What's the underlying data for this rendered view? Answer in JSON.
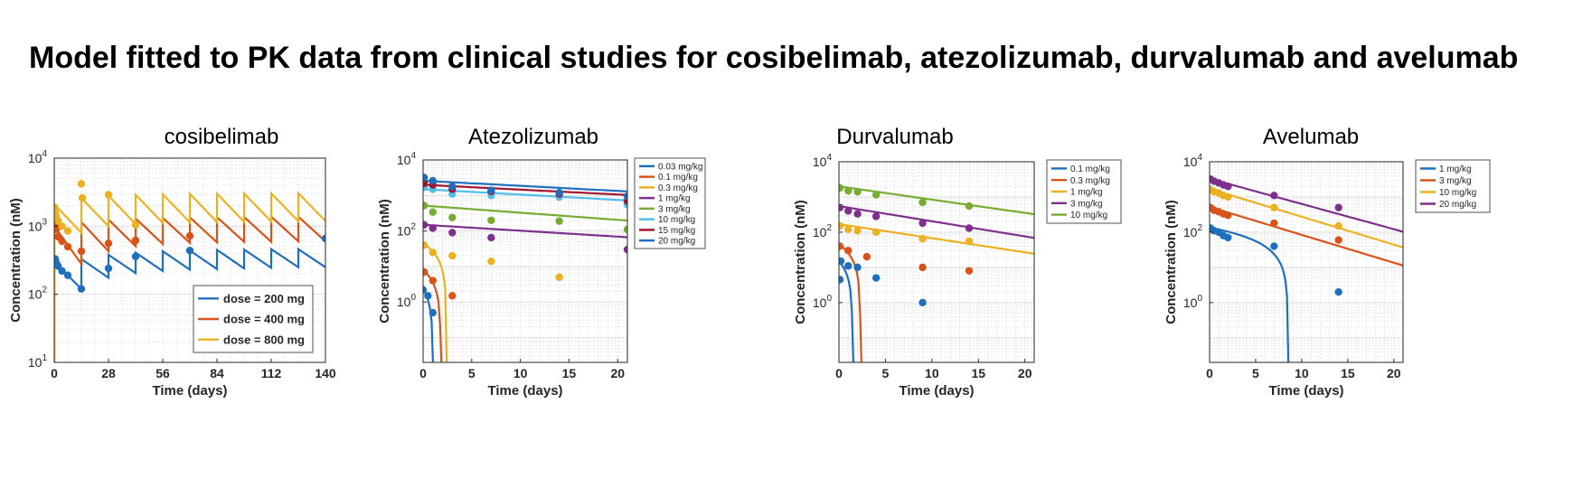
{
  "slide": {
    "title": "Model fitted to PK data from clinical studies for cosibelimab, atezolizumab, durvalumab and avelumab"
  },
  "colors": {
    "blue": "#1f6fbf",
    "orange": "#d95319",
    "yellow": "#edb120",
    "purple": "#7e2f8e",
    "green": "#77ac30",
    "lightblue": "#4dbeee",
    "darkred": "#a2142f",
    "grid": "#d9d9d9"
  },
  "chart_data": [
    {
      "type": "line",
      "title": "cosibelimab",
      "xlabel": "Time (days)",
      "ylabel": "Concentration (nM)",
      "xlim": [
        0,
        140
      ],
      "ylim": [
        10,
        10000
      ],
      "yscale": "log",
      "xticks": [
        0,
        28,
        56,
        84,
        112,
        140
      ],
      "xticklabels": [
        "0",
        "28",
        "56",
        "84",
        "112",
        "140"
      ],
      "yticks": [
        10,
        100,
        1000,
        10000
      ],
      "yticklabels": [
        "10",
        "10",
        "10",
        "10"
      ],
      "yticksup": [
        "1",
        "2",
        "3",
        "4"
      ],
      "grid": true,
      "legend": "bottom-right",
      "dosing": {
        "interval": 14,
        "n": 10
      },
      "series": [
        {
          "name": "dose = 200 mg",
          "color": "#1f6fbf",
          "peak": [
            300,
            330,
            380,
            410,
            430,
            440,
            450,
            455,
            460,
            460
          ],
          "trough": [
            120,
            175,
            205,
            220,
            230,
            235,
            240,
            245,
            250,
            250
          ],
          "points": [
            [
              0.5,
              330
            ],
            [
              1,
              290
            ],
            [
              2,
              260
            ],
            [
              4,
              220
            ],
            [
              7,
              190
            ],
            [
              14,
              120
            ],
            [
              28,
              240
            ],
            [
              42,
              360
            ],
            [
              70,
              440
            ],
            [
              140,
              660
            ]
          ]
        },
        {
          "name": "dose = 400 mg",
          "color": "#d95319",
          "peak": [
            1000,
            1150,
            1250,
            1300,
            1330,
            1350,
            1360,
            1370,
            1380,
            1380
          ],
          "trough": [
            280,
            430,
            510,
            550,
            570,
            580,
            590,
            590,
            600,
            600
          ],
          "points": [
            [
              0.5,
              1050
            ],
            [
              1,
              900
            ],
            [
              2,
              700
            ],
            [
              4,
              600
            ],
            [
              7,
              500
            ],
            [
              14,
              430
            ],
            [
              28,
              560
            ],
            [
              42,
              620
            ],
            [
              70,
              720
            ]
          ]
        },
        {
          "name": "dose = 800 mg",
          "color": "#edb120",
          "peak": [
            2100,
            2600,
            2800,
            2900,
            2950,
            3000,
            3020,
            3030,
            3040,
            3050
          ],
          "trough": [
            800,
            1000,
            1080,
            1120,
            1140,
            1150,
            1160,
            1170,
            1180,
            1190
          ],
          "points": [
            [
              0.2,
              1900
            ],
            [
              0.5,
              1600
            ],
            [
              1,
              1400
            ],
            [
              2,
              1200
            ],
            [
              4,
              1000
            ],
            [
              7,
              850
            ],
            [
              14,
              4200
            ],
            [
              14.5,
              2600
            ],
            [
              28,
              2900
            ],
            [
              42,
              1050
            ]
          ]
        }
      ]
    },
    {
      "type": "line",
      "title": "Atezolizumab",
      "xlabel": "Time (days)",
      "ylabel": "Concentration (nM)",
      "xlim": [
        0,
        21
      ],
      "ylim": [
        0.02,
        10000
      ],
      "yscale": "log",
      "xticks": [
        0,
        5,
        10,
        15,
        20
      ],
      "xticklabels": [
        "0",
        "5",
        "10",
        "15",
        "20"
      ],
      "yticks": [
        1,
        100,
        10000
      ],
      "yticklabels": [
        "10",
        "10",
        "10"
      ],
      "yticksup": [
        "0",
        "2",
        "4"
      ],
      "grid": true,
      "legend": "top-right-outside",
      "series": [
        {
          "name": "0.03 mg/kg",
          "color": "#1f6fbf",
          "c0": 2.3,
          "linear_elim": 1.0,
          "points": [
            [
              0,
              2.2
            ],
            [
              0.5,
              1.5
            ],
            [
              1,
              0.5
            ]
          ]
        },
        {
          "name": "0.1 mg/kg",
          "color": "#d95319",
          "c0": 8,
          "linear_elim": 1.8,
          "points": [
            [
              0.1,
              7
            ],
            [
              1,
              4
            ],
            [
              3,
              1.5
            ]
          ]
        },
        {
          "name": "0.3 mg/kg",
          "color": "#edb120",
          "c0": 45,
          "linear_elim": 2.4,
          "points": [
            [
              0.1,
              40
            ],
            [
              1,
              25
            ],
            [
              3,
              20
            ],
            [
              7,
              14
            ],
            [
              14,
              5
            ]
          ]
        },
        {
          "name": "1 mg/kg",
          "color": "#7e2f8e",
          "c0": 150,
          "half_life": 18,
          "points": [
            [
              0.1,
              150
            ],
            [
              1,
              120
            ],
            [
              3,
              90
            ],
            [
              7,
              65
            ],
            [
              21,
              30
            ]
          ]
        },
        {
          "name": "3 mg/kg",
          "color": "#77ac30",
          "c0": 520,
          "half_life": 15,
          "points": [
            [
              0.1,
              520
            ],
            [
              1,
              340
            ],
            [
              3,
              240
            ],
            [
              7,
              200
            ],
            [
              14,
              190
            ],
            [
              21,
              110
            ]
          ]
        },
        {
          "name": "10 mg/kg",
          "color": "#4dbeee",
          "c0": 1500,
          "half_life": 20,
          "points": [
            [
              0.1,
              1700
            ],
            [
              1,
              1500
            ],
            [
              3,
              1100
            ],
            [
              7,
              1000
            ],
            [
              14,
              900
            ],
            [
              21,
              550
            ]
          ]
        },
        {
          "name": "15 mg/kg",
          "color": "#a2142f",
          "c0": 2000,
          "half_life": 22,
          "points": [
            [
              0.1,
              2200
            ],
            [
              1,
              2000
            ],
            [
              3,
              1500
            ],
            [
              7,
              1300
            ],
            [
              14,
              1100
            ],
            [
              21,
              700
            ]
          ]
        },
        {
          "name": "20 mg/kg",
          "color": "#1f6fbf",
          "c0": 2600,
          "half_life": 21,
          "points": [
            [
              0.1,
              3200
            ],
            [
              1,
              2600
            ],
            [
              3,
              1800
            ],
            [
              7,
              1400
            ],
            [
              14,
              1200
            ],
            [
              21,
              950
            ]
          ]
        }
      ]
    },
    {
      "type": "line",
      "title": "Durvalumab",
      "xlabel": "Time (days)",
      "ylabel": "Concentration (nM)",
      "xlim": [
        0,
        21
      ],
      "ylim": [
        0.02,
        10000
      ],
      "yscale": "log",
      "xticks": [
        0,
        5,
        10,
        15,
        20
      ],
      "xticklabels": [
        "0",
        "5",
        "10",
        "15",
        "20"
      ],
      "yticks": [
        1,
        100,
        10000
      ],
      "yticklabels": [
        "10",
        "10",
        "10"
      ],
      "yticksup": [
        "0",
        "2",
        "4"
      ],
      "grid": true,
      "legend": "top-right-outside",
      "series": [
        {
          "name": "0.1 mg/kg",
          "color": "#1f6fbf",
          "c0": 15,
          "linear_elim": 1.45,
          "points": [
            [
              0.1,
              4.5
            ],
            [
              0.2,
              15
            ],
            [
              1,
              11
            ],
            [
              2,
              10
            ],
            [
              4,
              5
            ],
            [
              9,
              1
            ]
          ]
        },
        {
          "name": "0.3 mg/kg",
          "color": "#d95319",
          "c0": 45,
          "linear_elim": 2.3,
          "points": [
            [
              0.1,
              40
            ],
            [
              1,
              30
            ],
            [
              3,
              20
            ],
            [
              9,
              10
            ],
            [
              14,
              8
            ]
          ]
        },
        {
          "name": "1 mg/kg",
          "color": "#edb120",
          "c0": 170,
          "half_life": 7.5,
          "points": [
            [
              0.1,
              150
            ],
            [
              1,
              120
            ],
            [
              2,
              110
            ],
            [
              4,
              100
            ],
            [
              9,
              65
            ],
            [
              14,
              55
            ]
          ]
        },
        {
          "name": "3 mg/kg",
          "color": "#7e2f8e",
          "c0": 550,
          "half_life": 7,
          "points": [
            [
              0.1,
              500
            ],
            [
              1,
              400
            ],
            [
              2,
              330
            ],
            [
              4,
              280
            ],
            [
              9,
              180
            ],
            [
              14,
              130
            ]
          ]
        },
        {
          "name": "10 mg/kg",
          "color": "#77ac30",
          "c0": 2000,
          "half_life": 8,
          "points": [
            [
              0.1,
              1800
            ],
            [
              1,
              1500
            ],
            [
              2,
              1400
            ],
            [
              4,
              1150
            ],
            [
              9,
              700
            ],
            [
              14,
              550
            ]
          ]
        }
      ]
    },
    {
      "type": "line",
      "title": "Avelumab",
      "xlabel": "Time (days)",
      "ylabel": "Concentration (nM)",
      "xlim": [
        0,
        21
      ],
      "ylim": [
        0.02,
        10000
      ],
      "yscale": "log",
      "xticks": [
        0,
        5,
        10,
        15,
        20
      ],
      "xticklabels": [
        "0",
        "5",
        "10",
        "15",
        "20"
      ],
      "yticks": [
        1,
        100,
        10000
      ],
      "yticklabels": [
        "10",
        "10",
        "10"
      ],
      "yticksup": [
        "0",
        "2",
        "4"
      ],
      "grid": true,
      "legend": "top-right-outside",
      "series": [
        {
          "name": "1 mg/kg",
          "color": "#1f6fbf",
          "c0": 135,
          "linear_elim": 8.5,
          "points": [
            [
              0.1,
              130
            ],
            [
              0.5,
              110
            ],
            [
              1,
              100
            ],
            [
              1.5,
              80
            ],
            [
              2,
              70
            ],
            [
              7,
              40
            ],
            [
              14,
              2
            ]
          ]
        },
        {
          "name": "3 mg/kg",
          "color": "#d95319",
          "c0": 520,
          "half_life": 3.8,
          "points": [
            [
              0.1,
              500
            ],
            [
              0.5,
              420
            ],
            [
              1,
              380
            ],
            [
              1.5,
              330
            ],
            [
              2,
              300
            ],
            [
              7,
              180
            ],
            [
              14,
              60
            ]
          ]
        },
        {
          "name": "10 mg/kg",
          "color": "#edb120",
          "c0": 1700,
          "half_life": 3.8,
          "points": [
            [
              0.1,
              1600
            ],
            [
              0.5,
              1400
            ],
            [
              1,
              1300
            ],
            [
              1.5,
              1100
            ],
            [
              2,
              1000
            ],
            [
              7,
              500
            ],
            [
              14,
              150
            ]
          ]
        },
        {
          "name": "20 mg/kg",
          "color": "#7e2f8e",
          "c0": 3300,
          "half_life": 4.2,
          "points": [
            [
              0.1,
              3200
            ],
            [
              0.5,
              2800
            ],
            [
              1,
              2500
            ],
            [
              1.5,
              2200
            ],
            [
              2,
              2000
            ],
            [
              7,
              1100
            ],
            [
              14,
              500
            ]
          ]
        }
      ]
    }
  ]
}
